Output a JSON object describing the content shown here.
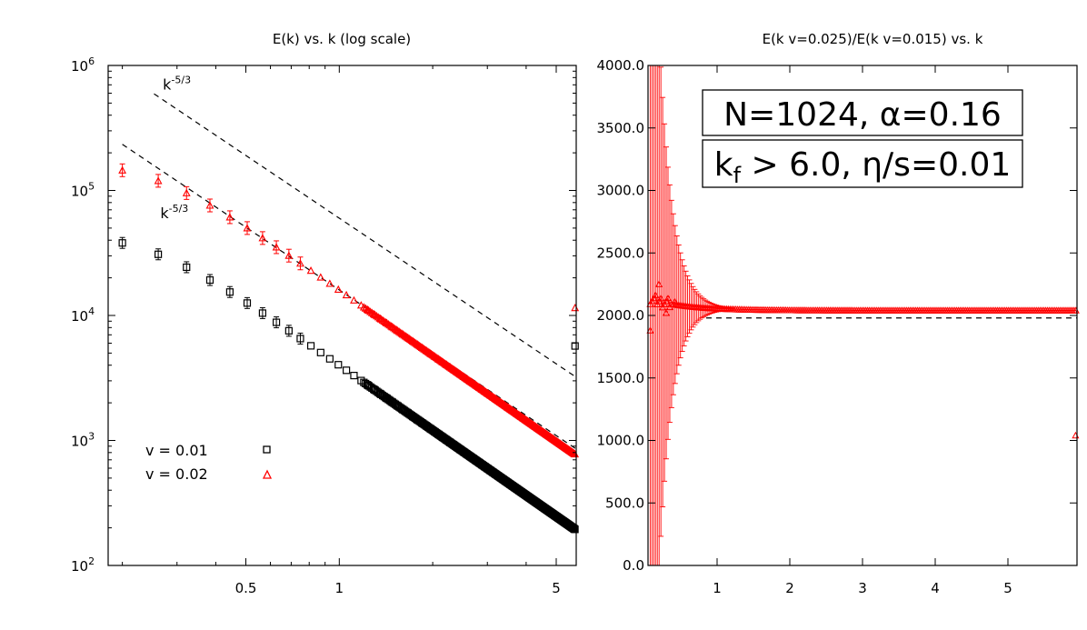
{
  "chart_data": [
    {
      "type": "scatter",
      "title": "E(k) vs. k (log scale)",
      "xscale": "log",
      "yscale": "log",
      "xlim": [
        0.18,
        5.8
      ],
      "ylim": [
        100,
        1000000
      ],
      "xticks": [
        {
          "v": 0.5,
          "label": "0.5"
        },
        {
          "v": 1,
          "label": "1"
        },
        {
          "v": 5,
          "label": "5"
        }
      ],
      "yticks": [
        {
          "v": 100,
          "base": "10",
          "exp": "2"
        },
        {
          "v": 1000,
          "base": "10",
          "exp": "3"
        },
        {
          "v": 10000,
          "base": "10",
          "exp": "4"
        },
        {
          "v": 100000,
          "base": "10",
          "exp": "5"
        },
        {
          "v": 1000000,
          "base": "10",
          "exp": "6"
        }
      ],
      "series": [
        {
          "name": "v = 0.01",
          "color": "#000000",
          "marker": "square",
          "y_at_k1": 4000,
          "slope": -1.73,
          "lowk_plateau": 47000,
          "edge_point": {
            "x": 5.75,
            "y": 5700
          }
        },
        {
          "name": "v = 0.02",
          "color": "#ff0000",
          "marker": "triangle",
          "y_at_k1": 16000,
          "slope": -1.73,
          "lowk_plateau": 175000,
          "edge_point": {
            "x": 5.75,
            "y": 11500
          }
        }
      ],
      "reference_lines": [
        {
          "label_base": "k",
          "label_exp": "-5/3",
          "slope": -1.6667,
          "y_at_k1": 60000
        },
        {
          "label_base": "k",
          "label_exp": "-5/3",
          "slope": -1.6667,
          "y_at_k1": 16000
        }
      ]
    },
    {
      "type": "line",
      "title": "E(k v=0.025)/E(k v=0.015) vs. k",
      "xlim": [
        0.05,
        5.95
      ],
      "ylim": [
        0,
        4000
      ],
      "xticks": [
        {
          "v": 1,
          "label": "1"
        },
        {
          "v": 2,
          "label": "2"
        },
        {
          "v": 3,
          "label": "3"
        },
        {
          "v": 4,
          "label": "4"
        },
        {
          "v": 5,
          "label": "5"
        }
      ],
      "yticks": [
        {
          "v": 0,
          "label": "0.0"
        },
        {
          "v": 500,
          "label": "500.0"
        },
        {
          "v": 1000,
          "label": "1000.0"
        },
        {
          "v": 1500,
          "label": "1500.0"
        },
        {
          "v": 2000,
          "label": "2000.0"
        },
        {
          "v": 2500,
          "label": "2500.0"
        },
        {
          "v": 3000,
          "label": "3000.0"
        },
        {
          "v": 3500,
          "label": "3500.0"
        },
        {
          "v": 4000,
          "label": "4000.0"
        }
      ],
      "reference_level": 1980,
      "series_color": "#ff0000",
      "plateau_value": 2040,
      "edge_point": {
        "x": 5.93,
        "y": 1040
      },
      "annotation_line1": "N=1024, α=0.16",
      "annotation_line2": "k",
      "annotation_line2_sub": "f",
      "annotation_line2_rest": " > 6.0, η/s=0.01"
    }
  ]
}
